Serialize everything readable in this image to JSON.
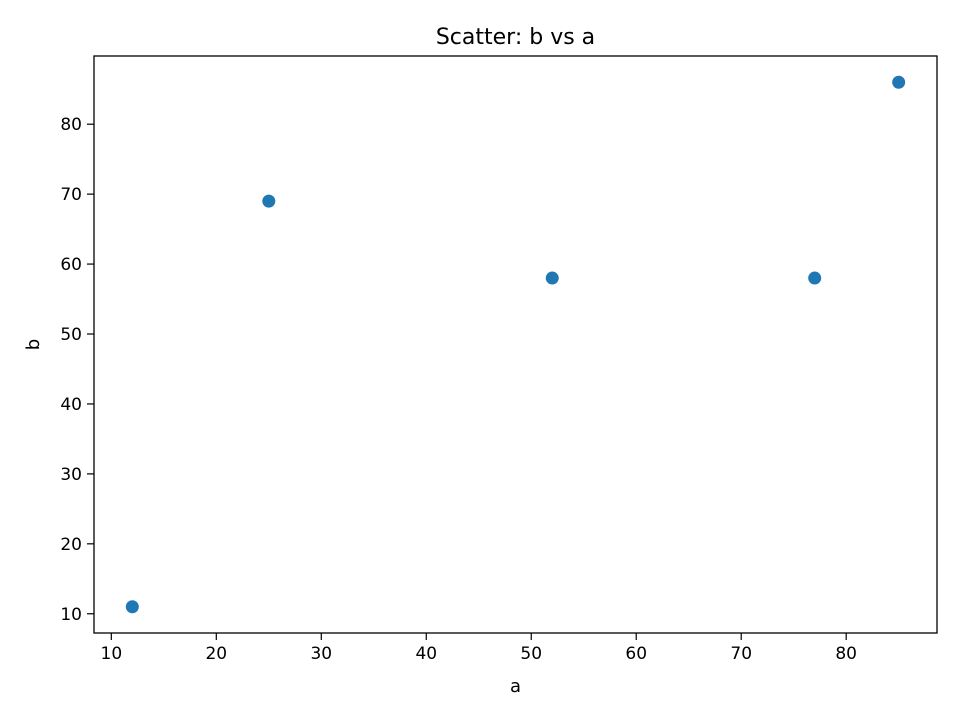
{
  "chart_data": {
    "type": "scatter",
    "title": "Scatter: b vs a",
    "xlabel": "a",
    "ylabel": "b",
    "xlim": [
      8.35,
      88.65
    ],
    "ylim": [
      7.25,
      89.75
    ],
    "xticks": [
      10,
      20,
      30,
      40,
      50,
      60,
      70,
      80
    ],
    "yticks": [
      10,
      20,
      30,
      40,
      50,
      60,
      70,
      80
    ],
    "grid": false,
    "marker_color": "#1f77b4",
    "points": [
      {
        "x": 12,
        "y": 11
      },
      {
        "x": 25,
        "y": 69
      },
      {
        "x": 52,
        "y": 58
      },
      {
        "x": 77,
        "y": 58
      },
      {
        "x": 85,
        "y": 86
      }
    ]
  }
}
